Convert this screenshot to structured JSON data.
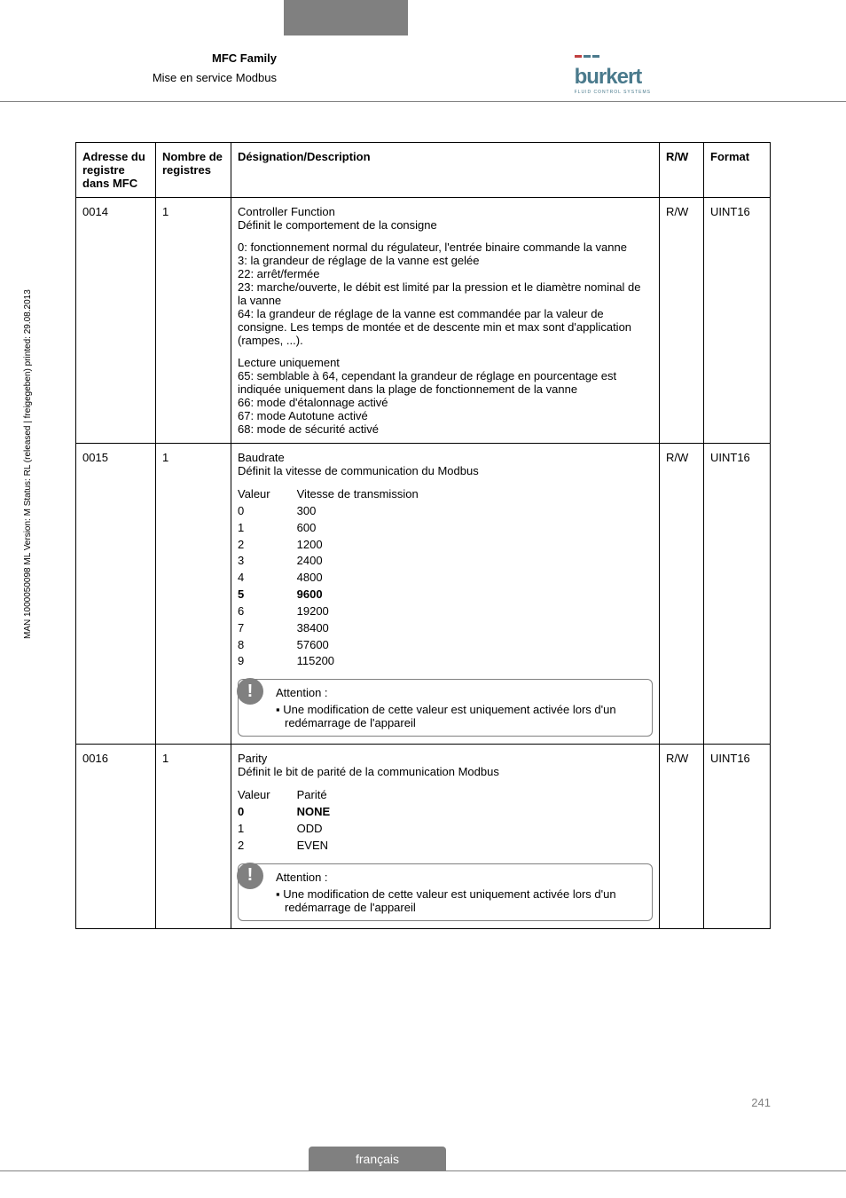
{
  "header": {
    "title": "MFC Family",
    "subtitle": "Mise en service Modbus",
    "logo_name": "burkert",
    "logo_tagline": "FLUID CONTROL SYSTEMS"
  },
  "side_text": "MAN 1000050098 ML Version: M Status: RL (released | freigegeben) printed: 29.08.2013",
  "page_number": "241",
  "footer_tab": "français",
  "table": {
    "headers": {
      "addr": "Adresse du registre dans MFC",
      "nb": "Nombre de registres",
      "desc": "Désignation/Description",
      "rw": "R/W",
      "fmt": "Format"
    },
    "rows": [
      {
        "addr": "0014",
        "nb": "1",
        "rw": "R/W",
        "fmt": "UINT16",
        "title": "Controller Function",
        "subtitle": "Définit le comportement de la consigne",
        "para1": "0:  fonctionnement normal du régulateur, l'entrée binaire commande la vanne\n3:  la grandeur de réglage de la vanne est gelée\n22: arrêt/fermée\n23: marche/ouverte, le débit est limité par la pression et le diamètre nominal de la vanne\n64: la grandeur de réglage de la vanne est commandée par la valeur de consigne. Les temps de montée et de descente min et max sont d'application (rampes, ...).",
        "para2": "Lecture uniquement\n65: semblable à 64, cependant la grandeur de réglage en pourcentage est indiquée uniquement dans la plage de fonctionnement de la vanne\n66: mode d'étalonnage activé\n67: mode Autotune activé\n68: mode de sécurité activé"
      },
      {
        "addr": "0015",
        "nb": "1",
        "rw": "R/W",
        "fmt": "UINT16",
        "title": "Baudrate",
        "subtitle": "Définit la vitesse de communication du Modbus",
        "kv_head_l": "Valeur",
        "kv_head_r": "Vitesse de transmission",
        "kv": [
          [
            "0",
            "300"
          ],
          [
            "1",
            "600"
          ],
          [
            "2",
            "1200"
          ],
          [
            "3",
            "2400"
          ],
          [
            "4",
            "4800"
          ],
          [
            "5",
            "9600"
          ],
          [
            "6",
            "19200"
          ],
          [
            "7",
            "38400"
          ],
          [
            "8",
            "57600"
          ],
          [
            "9",
            "115200"
          ]
        ],
        "kv_bold_idx": 5,
        "attention_title": "Attention :",
        "attention_text": "Une modification de cette valeur est uniquement activée lors d'un redémarrage de l'appareil"
      },
      {
        "addr": "0016",
        "nb": "1",
        "rw": "R/W",
        "fmt": "UINT16",
        "title": "Parity",
        "subtitle": "Définit le bit de parité de la communication Modbus",
        "kv_head_l": "Valeur",
        "kv_head_r": "Parité",
        "kv": [
          [
            "0",
            "NONE"
          ],
          [
            "1",
            "ODD"
          ],
          [
            "2",
            "EVEN"
          ]
        ],
        "kv_bold_idx": 0,
        "attention_title": "Attention :",
        "attention_text": "Une modification de cette valeur est uniquement activée lors d'un redémarrage de l'appareil"
      }
    ]
  }
}
